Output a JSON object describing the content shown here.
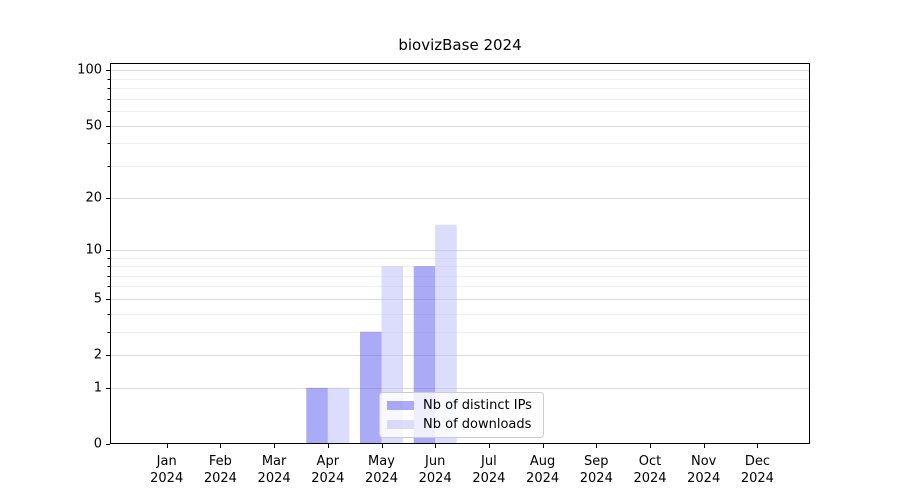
{
  "chart_data": {
    "type": "bar",
    "title": "biovizBase 2024",
    "categories": [
      "Jan",
      "Feb",
      "Mar",
      "Apr",
      "May",
      "Jun",
      "Jul",
      "Aug",
      "Sep",
      "Oct",
      "Nov",
      "Dec"
    ],
    "x_tick_year": "2024",
    "series": [
      {
        "name": "Nb of distinct IPs",
        "color": "#5555ee",
        "opacity": 0.5,
        "values": [
          0,
          0,
          0,
          1,
          3,
          8,
          0,
          0,
          0,
          0,
          0,
          0
        ]
      },
      {
        "name": "Nb of downloads",
        "color": "#b9b9fa",
        "opacity": 0.5,
        "values": [
          0,
          0,
          0,
          1,
          8,
          14,
          0,
          0,
          0,
          0,
          0,
          0
        ]
      }
    ],
    "y_axis": {
      "scale": "log1p",
      "min": 0,
      "max": 109.6,
      "major_ticks": [
        0,
        1,
        2,
        5,
        10,
        20,
        50,
        100
      ],
      "minor_ticks": [
        3,
        4,
        6,
        7,
        8,
        9,
        30,
        40,
        60,
        70,
        80,
        90
      ]
    },
    "legend": {
      "position": "lower center"
    },
    "grid": {
      "major_color": "#d9d9d9",
      "minor_color": "#f0f0f0"
    },
    "axis_color": "#000000"
  }
}
